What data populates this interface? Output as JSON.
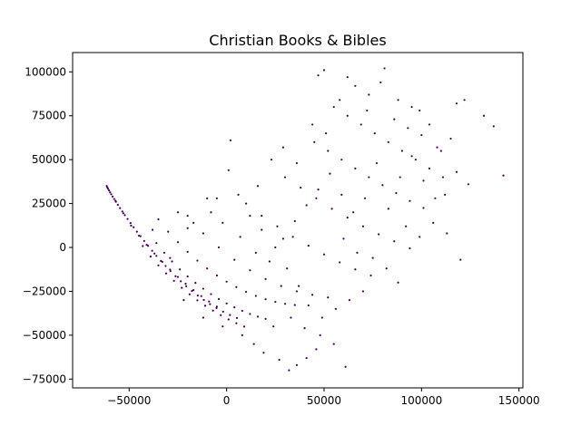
{
  "chart_data": {
    "type": "scatter",
    "title": "Christian Books & Bibles",
    "xlabel": "",
    "ylabel": "",
    "xlim": [
      -79000,
      152000
    ],
    "ylim": [
      -80000,
      111000
    ],
    "x_ticks": [
      -50000,
      0,
      50000,
      100000,
      150000
    ],
    "x_tick_labels": [
      "−50000",
      "0",
      "50000",
      "100000",
      "150000"
    ],
    "y_ticks": [
      -75000,
      -50000,
      -25000,
      0,
      25000,
      50000,
      75000,
      100000
    ],
    "y_tick_labels": [
      "−75000",
      "−50000",
      "−25000",
      "0",
      "25000",
      "50000",
      "75000",
      "100000"
    ],
    "grid": false,
    "legend": "none",
    "colors": {
      "points": "#440154",
      "axes": "#000000",
      "background": "#ffffff"
    },
    "series": [
      {
        "values": [
          [
            -61500,
            35000
          ],
          [
            -61200,
            34200
          ],
          [
            -60800,
            33400
          ],
          [
            -60300,
            32500
          ],
          [
            -59800,
            31400
          ],
          [
            -59200,
            30300
          ],
          [
            -58500,
            29000
          ],
          [
            -57700,
            27600
          ],
          [
            -56800,
            26000
          ],
          [
            -55800,
            24300
          ],
          [
            -54700,
            22400
          ],
          [
            -53500,
            20500
          ],
          [
            -52200,
            18400
          ],
          [
            -50800,
            16200
          ],
          [
            -49300,
            13900
          ],
          [
            -47700,
            11500
          ],
          [
            -46000,
            9000
          ],
          [
            -44200,
            6400
          ],
          [
            -42300,
            3700
          ],
          [
            -40300,
            900
          ],
          [
            -38200,
            -1900
          ],
          [
            -36000,
            -4800
          ],
          [
            -33700,
            -7700
          ],
          [
            -31300,
            -10600
          ],
          [
            -28800,
            -13500
          ],
          [
            -26200,
            -16400
          ],
          [
            -23500,
            -19300
          ],
          [
            -20700,
            -22100
          ],
          [
            -17800,
            -24800
          ],
          [
            -14800,
            -27400
          ],
          [
            -11700,
            -29900
          ],
          [
            -8500,
            -32300
          ],
          [
            -5200,
            -34500
          ],
          [
            -1800,
            -36600
          ],
          [
            1700,
            -38500
          ],
          [
            5300,
            -40200
          ],
          [
            -57000,
            26600
          ],
          [
            -53000,
            19500
          ],
          [
            -49000,
            12400
          ],
          [
            -45000,
            6700
          ],
          [
            -41000,
            1500
          ],
          [
            -37000,
            -3500
          ],
          [
            -33000,
            -8200
          ],
          [
            -29000,
            -12600
          ],
          [
            -25000,
            -16800
          ],
          [
            -21000,
            -20700
          ],
          [
            -17000,
            -24300
          ],
          [
            -13000,
            -27700
          ],
          [
            -9000,
            -30800
          ],
          [
            -5000,
            -33700
          ],
          [
            -43000,
            800
          ],
          [
            -39000,
            -5200
          ],
          [
            -35000,
            -10200
          ],
          [
            -31000,
            -14800
          ],
          [
            -27000,
            -19000
          ],
          [
            -23000,
            -23000
          ],
          [
            -19000,
            -26700
          ],
          [
            -15000,
            -30100
          ],
          [
            -11000,
            -33200
          ],
          [
            -7000,
            -36000
          ],
          [
            -3000,
            -38600
          ],
          [
            1000,
            -41000
          ],
          [
            5000,
            -43200
          ],
          [
            9000,
            -45100
          ],
          [
            -36000,
            2500
          ],
          [
            -32000,
            -3000
          ],
          [
            -28000,
            -8000
          ],
          [
            -24000,
            -12500
          ],
          [
            -20000,
            -16500
          ],
          [
            -16000,
            -20200
          ],
          [
            -12000,
            -23500
          ],
          [
            -8000,
            -26600
          ],
          [
            -4000,
            -29400
          ],
          [
            0,
            -31900
          ],
          [
            4000,
            -34100
          ],
          [
            8000,
            -36100
          ],
          [
            12000,
            -37900
          ],
          [
            16000,
            -39400
          ],
          [
            20000,
            -40700
          ],
          [
            -30000,
            9000
          ],
          [
            -25000,
            3000
          ],
          [
            -20000,
            -2500
          ],
          [
            -15000,
            -7500
          ],
          [
            -10000,
            -12000
          ],
          [
            -5000,
            -16000
          ],
          [
            0,
            -19500
          ],
          [
            5000,
            -22600
          ],
          [
            10000,
            -25300
          ],
          [
            15000,
            -27600
          ],
          [
            20000,
            -29500
          ],
          [
            25000,
            -31000
          ],
          [
            30000,
            -32100
          ],
          [
            35000,
            -32800
          ],
          [
            -20000,
            18000
          ],
          [
            -12000,
            8000
          ],
          [
            -4000,
            0
          ],
          [
            4000,
            -7000
          ],
          [
            12000,
            -13000
          ],
          [
            20000,
            -18000
          ],
          [
            28000,
            -22000
          ],
          [
            36000,
            -25000
          ],
          [
            44000,
            -27000
          ],
          [
            52000,
            -28500
          ],
          [
            10000,
            25000
          ],
          [
            18000,
            18000
          ],
          [
            26000,
            12000
          ],
          [
            34000,
            6000
          ],
          [
            42000,
            1000
          ],
          [
            50000,
            -4000
          ],
          [
            58000,
            -8500
          ],
          [
            66000,
            -12500
          ],
          [
            74000,
            -16000
          ],
          [
            30000,
            40000
          ],
          [
            38000,
            34000
          ],
          [
            46000,
            28000
          ],
          [
            54000,
            22000
          ],
          [
            62000,
            17000
          ],
          [
            70000,
            12000
          ],
          [
            78000,
            7500
          ],
          [
            86000,
            3500
          ],
          [
            94000,
            -500
          ],
          [
            45000,
            60000
          ],
          [
            52000,
            55000
          ],
          [
            59000,
            50000
          ],
          [
            66000,
            45000
          ],
          [
            73000,
            40000
          ],
          [
            80000,
            35500
          ],
          [
            87000,
            31000
          ],
          [
            94000,
            26500
          ],
          [
            101000,
            22500
          ],
          [
            55000,
            80000
          ],
          [
            62000,
            75000
          ],
          [
            69000,
            70000
          ],
          [
            76000,
            65000
          ],
          [
            83000,
            60000
          ],
          [
            90000,
            55000
          ],
          [
            97000,
            50000
          ],
          [
            104000,
            45000
          ],
          [
            111000,
            40000
          ],
          [
            50000,
            101000
          ],
          [
            62000,
            97000
          ],
          [
            81000,
            102000
          ],
          [
            47000,
            98000
          ],
          [
            66000,
            92000
          ],
          [
            73000,
            87000
          ],
          [
            88000,
            84000
          ],
          [
            95000,
            80000
          ],
          [
            118000,
            82000
          ],
          [
            122000,
            84000
          ],
          [
            132000,
            75000
          ],
          [
            137000,
            69000
          ],
          [
            142000,
            41000
          ],
          [
            124000,
            36000
          ],
          [
            118000,
            43000
          ],
          [
            112000,
            30000
          ],
          [
            115000,
            62000
          ],
          [
            108000,
            57000
          ],
          [
            100000,
            64000
          ],
          [
            104000,
            70000
          ],
          [
            120000,
            -7000
          ],
          [
            113000,
            8000
          ],
          [
            106000,
            14000
          ],
          [
            99000,
            6000
          ],
          [
            92000,
            12000
          ],
          [
            -25000,
            20000
          ],
          [
            -17000,
            14000
          ],
          [
            -29000,
            -6000
          ],
          [
            -22000,
            -30000
          ],
          [
            -12000,
            -40000
          ],
          [
            -2000,
            -45000
          ],
          [
            8000,
            -50000
          ],
          [
            14000,
            -55000
          ],
          [
            19000,
            -60000
          ],
          [
            27000,
            -64000
          ],
          [
            32000,
            -70000
          ],
          [
            36000,
            -67000
          ],
          [
            41000,
            -63000
          ],
          [
            46000,
            -58000
          ],
          [
            61000,
            -68000
          ],
          [
            55000,
            -55000
          ],
          [
            48000,
            -50000
          ],
          [
            40000,
            -46000
          ],
          [
            33000,
            -40000
          ],
          [
            24000,
            -45000
          ],
          [
            2000,
            61000
          ],
          [
            1000,
            44000
          ],
          [
            -5000,
            28000
          ],
          [
            -10000,
            28000
          ],
          [
            -20000,
            11000
          ],
          [
            -35000,
            16000
          ],
          [
            -38000,
            10000
          ],
          [
            -8000,
            20000
          ],
          [
            -2000,
            14000
          ],
          [
            7000,
            6000
          ],
          [
            15000,
            -3000
          ],
          [
            22000,
            -8000
          ],
          [
            29000,
            5000
          ],
          [
            35000,
            15000
          ],
          [
            41000,
            24000
          ],
          [
            47000,
            33000
          ],
          [
            53000,
            42000
          ],
          [
            59000,
            30000
          ],
          [
            65000,
            20000
          ],
          [
            71000,
            28000
          ],
          [
            77000,
            48000
          ],
          [
            83000,
            22000
          ],
          [
            89000,
            40000
          ],
          [
            95000,
            52000
          ],
          [
            101000,
            38000
          ],
          [
            107000,
            28000
          ],
          [
            60000,
            5000
          ],
          [
            67000,
            -3000
          ],
          [
            75000,
            -6000
          ],
          [
            82000,
            -12000
          ],
          [
            88000,
            -20000
          ],
          [
            70000,
            -25000
          ],
          [
            63000,
            -30000
          ],
          [
            56000,
            -35000
          ],
          [
            49000,
            -40000
          ],
          [
            42000,
            -33000
          ],
          [
            37000,
            -22000
          ],
          [
            31000,
            -12000
          ],
          [
            25000,
            0
          ],
          [
            18000,
            10000
          ],
          [
            12000,
            18000
          ],
          [
            6000,
            30000
          ],
          [
            16000,
            35000
          ],
          [
            23000,
            50000
          ],
          [
            29000,
            57000
          ],
          [
            36000,
            48000
          ],
          [
            44000,
            70000
          ],
          [
            51000,
            65000
          ],
          [
            58000,
            84000
          ],
          [
            72000,
            78000
          ],
          [
            79000,
            94000
          ],
          [
            86000,
            73000
          ],
          [
            93000,
            68000
          ],
          [
            99000,
            78000
          ],
          [
            110000,
            55000
          ]
        ]
      }
    ]
  }
}
